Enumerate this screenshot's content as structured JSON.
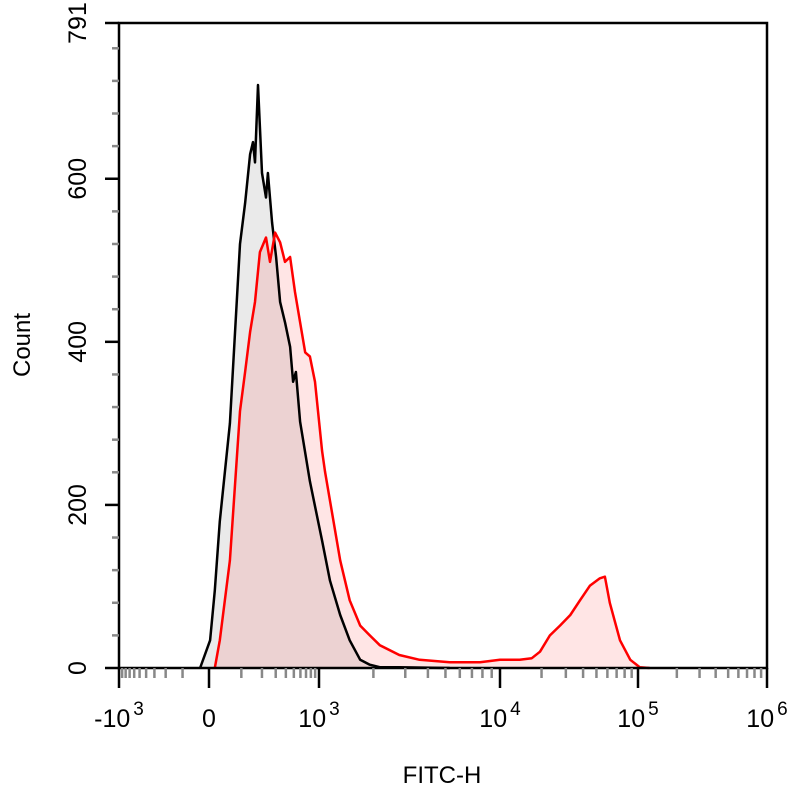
{
  "chart_data": {
    "type": "area",
    "title": "",
    "xlabel": "FITC-H",
    "ylabel": "Count",
    "x_scale": "biexponential",
    "xlim": [
      -1000,
      1000000
    ],
    "ylim": [
      0,
      791
    ],
    "grid": false,
    "x_ticks": [
      {
        "value": -1000,
        "base": "-10",
        "exp": "3"
      },
      {
        "value": 0,
        "base": "0",
        "exp": ""
      },
      {
        "value": 1000,
        "base": "10",
        "exp": "3"
      },
      {
        "value": 10000,
        "base": "10",
        "exp": "4"
      },
      {
        "value": 100000,
        "base": "10",
        "exp": "5"
      },
      {
        "value": 1000000,
        "base": "10",
        "exp": "6"
      }
    ],
    "y_ticks": [
      {
        "value": 0,
        "label": "0"
      },
      {
        "value": 200,
        "label": "200"
      },
      {
        "value": 400,
        "label": "400"
      },
      {
        "value": 600,
        "label": "600"
      },
      {
        "value": 791,
        "label": "791"
      }
    ],
    "series": [
      {
        "color": "#000000",
        "fill": "#e6e6e6",
        "x": [
          -30,
          3,
          16,
          30,
          60,
          95,
          115,
          137,
          151,
          161,
          177,
          200,
          226,
          239,
          270,
          303,
          340,
          390,
          450,
          490,
          530,
          594,
          780,
          1040,
          1150,
          1310,
          1480,
          1690,
          1910,
          2170,
          2780,
          5280
        ],
        "y": [
          0,
          34,
          95,
          180,
          300,
          520,
          570,
          630,
          645,
          620,
          715,
          607,
          577,
          607,
          546,
          504,
          449,
          424,
          394,
          351,
          363,
          302,
          229,
          156,
          107,
          65,
          34,
          10,
          4,
          1,
          1,
          0
        ]
      },
      {
        "color": "#ff0000",
        "fill": "#ff0000",
        "x": [
          16,
          30,
          60,
          95,
          115,
          137,
          161,
          188,
          226,
          254,
          295,
          340,
          390,
          450,
          517,
          594,
          685,
          780,
          895,
          1040,
          1080,
          1150,
          1310,
          1480,
          1690,
          1910,
          2170,
          2780,
          3600,
          5280,
          7760,
          10000,
          13900,
          17000,
          19500,
          23000,
          27200,
          32300,
          38000,
          44900,
          53000,
          57600,
          62500,
          74000,
          88000,
          103000,
          123000
        ],
        "y": [
          0,
          34,
          132,
          315,
          363,
          412,
          449,
          510,
          528,
          498,
          534,
          522,
          498,
          504,
          461,
          424,
          387,
          382,
          351,
          266,
          241,
          205,
          132,
          83,
          52,
          40,
          28,
          16,
          10,
          7,
          7,
          10,
          10,
          12,
          20,
          40,
          52,
          65,
          83,
          101,
          110,
          112,
          80,
          34,
          10,
          1,
          0
        ]
      }
    ]
  }
}
